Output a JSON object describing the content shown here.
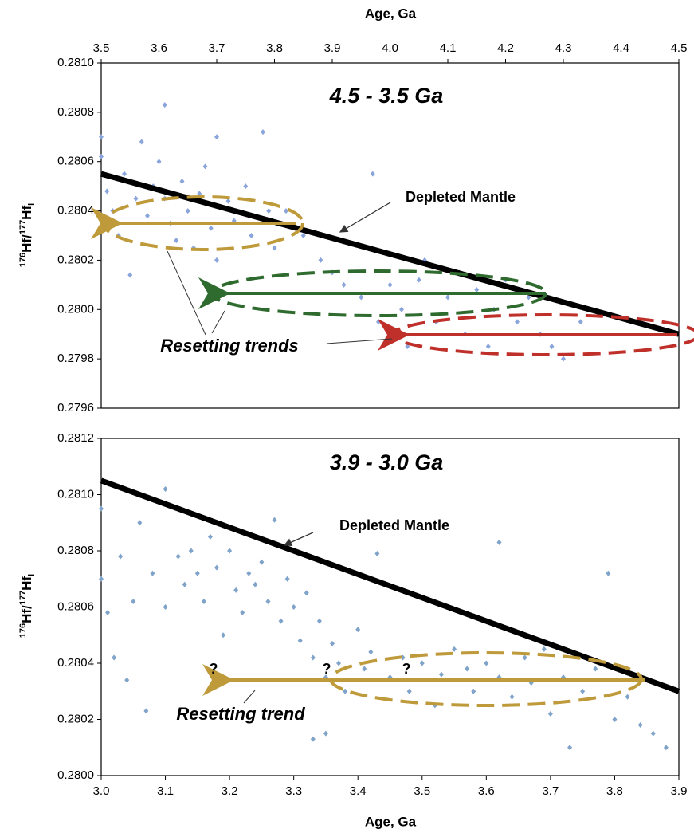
{
  "chart_data": [
    {
      "type": "scatter",
      "title": "4.5 - 3.5 Ga",
      "xlabel": "Age, Ga",
      "ylabel": {
        "sup": "176",
        "mid": "Hf/",
        "sup2": "177",
        "base": "Hf",
        "sub": "i"
      },
      "xlim": [
        3.5,
        4.5
      ],
      "xticks": [
        3.5,
        3.6,
        3.7,
        3.8,
        3.9,
        {
          "value": 4.0,
          "label": "4.0"
        },
        4.1,
        4.2,
        4.3,
        4.4,
        4.5
      ],
      "ylim": [
        0.2796,
        0.281
      ],
      "yticks": [
        0.2796,
        0.2798,
        {
          "value": 0.28,
          "label": "0.2800"
        },
        0.2802,
        0.2804,
        0.2806,
        0.2808,
        {
          "value": 0.281,
          "label": "0.2810"
        }
      ],
      "color": "#8aa4dc",
      "x": [
        3.5,
        3.5,
        3.51,
        3.52,
        3.53,
        3.54,
        3.55,
        3.56,
        3.57,
        3.58,
        3.59,
        3.6,
        3.61,
        3.61,
        3.62,
        3.63,
        3.64,
        3.65,
        3.66,
        3.67,
        3.68,
        3.69,
        3.7,
        3.7,
        3.72,
        3.73,
        3.75,
        3.76,
        3.78,
        3.79,
        3.8,
        3.82,
        3.85,
        3.88,
        3.9,
        3.92,
        3.95,
        3.97,
        3.98,
        4.0,
        4.02,
        4.03,
        4.05,
        4.06,
        4.08,
        4.1,
        4.12,
        4.13,
        4.15,
        4.17,
        4.18,
        4.2,
        4.22,
        4.24,
        4.26,
        4.28,
        4.3,
        4.33
      ],
      "values": [
        0.2807,
        0.28062,
        0.28048,
        0.2804,
        0.2803,
        0.28055,
        0.28014,
        0.28045,
        0.28068,
        0.28038,
        0.2805,
        0.2806,
        0.28083,
        0.28045,
        0.28035,
        0.28028,
        0.28052,
        0.2804,
        0.28025,
        0.28047,
        0.28058,
        0.28033,
        0.2807,
        0.2802,
        0.28044,
        0.28036,
        0.2805,
        0.2803,
        0.28072,
        0.2804,
        0.28025,
        0.2804,
        0.2803,
        0.2802,
        0.28015,
        0.2801,
        0.28005,
        0.28055,
        0.27995,
        0.2801,
        0.28,
        0.27985,
        0.28012,
        0.2802,
        0.27995,
        0.28005,
        0.28015,
        0.2799,
        0.28008,
        0.27985,
        0.28,
        0.28012,
        0.27995,
        0.28005,
        0.2799,
        0.27985,
        0.2798,
        0.27995
      ],
      "mantle": {
        "x": [
          3.5,
          4.5
        ],
        "values": [
          0.28055,
          0.2799
        ],
        "color": "#000000"
      },
      "annotations": {
        "mantle": "Depleted Mantle",
        "trend": "Resetting trends"
      }
    },
    {
      "type": "scatter",
      "title": "3.9 - 3.0 Ga",
      "xlabel": "Age, Ga",
      "ylabel": {
        "sup": "176",
        "mid": "Hf/",
        "sup2": "177",
        "base": "Hf",
        "sub": "i"
      },
      "xlim": [
        3.0,
        3.9
      ],
      "xticks": [
        {
          "value": 3.0,
          "label": "3.0"
        },
        3.1,
        3.2,
        3.3,
        3.4,
        3.5,
        3.6,
        3.7,
        3.8,
        3.9
      ],
      "ylim": [
        0.28,
        0.2812
      ],
      "yticks": [
        {
          "value": 0.28,
          "label": "0.2800"
        },
        0.2802,
        0.2804,
        0.2806,
        0.2808,
        {
          "value": 0.281,
          "label": "0.2810"
        },
        0.2812
      ],
      "color": "#7fa3c9",
      "x": [
        3.0,
        3.0,
        3.01,
        3.02,
        3.03,
        3.04,
        3.05,
        3.06,
        3.07,
        3.08,
        3.1,
        3.1,
        3.12,
        3.13,
        3.14,
        3.15,
        3.16,
        3.17,
        3.18,
        3.19,
        3.2,
        3.21,
        3.22,
        3.23,
        3.24,
        3.25,
        3.26,
        3.27,
        3.28,
        3.29,
        3.3,
        3.31,
        3.32,
        3.33,
        3.34,
        3.35,
        3.36,
        3.37,
        3.38,
        3.4,
        3.41,
        3.42,
        3.43,
        3.45,
        3.47,
        3.48,
        3.5,
        3.52,
        3.53,
        3.55,
        3.57,
        3.58,
        3.6,
        3.62,
        3.62,
        3.64,
        3.66,
        3.67,
        3.69,
        3.7,
        3.72,
        3.73,
        3.75,
        3.77,
        3.79,
        3.8,
        3.82,
        3.84,
        3.86,
        3.88,
        3.35,
        3.33
      ],
      "values": [
        0.28095,
        0.2807,
        0.28058,
        0.28042,
        0.28078,
        0.28034,
        0.28062,
        0.2809,
        0.28023,
        0.28072,
        0.28102,
        0.2806,
        0.28078,
        0.28068,
        0.2808,
        0.28072,
        0.28062,
        0.28085,
        0.28074,
        0.2805,
        0.2808,
        0.28066,
        0.28058,
        0.28072,
        0.28068,
        0.28076,
        0.28062,
        0.28091,
        0.28055,
        0.2807,
        0.2806,
        0.28048,
        0.28065,
        0.28042,
        0.28055,
        0.28035,
        0.28047,
        0.2804,
        0.2803,
        0.28052,
        0.28038,
        0.28044,
        0.28079,
        0.28035,
        0.28042,
        0.2803,
        0.2804,
        0.28025,
        0.28036,
        0.28045,
        0.28038,
        0.2803,
        0.2804,
        0.28083,
        0.28035,
        0.28028,
        0.28042,
        0.28033,
        0.28045,
        0.28022,
        0.28035,
        0.2801,
        0.2803,
        0.28038,
        0.28072,
        0.2802,
        0.28028,
        0.28018,
        0.28015,
        0.2801,
        0.28015,
        0.28013
      ],
      "mantle": {
        "x": [
          3.0,
          3.9
        ],
        "values": [
          0.28105,
          0.2803
        ],
        "color": "#000000"
      },
      "annotations": {
        "mantle": "Depleted Mantle",
        "trend": "Resetting trend",
        "questions": [
          "?",
          "?",
          "?"
        ]
      }
    }
  ]
}
